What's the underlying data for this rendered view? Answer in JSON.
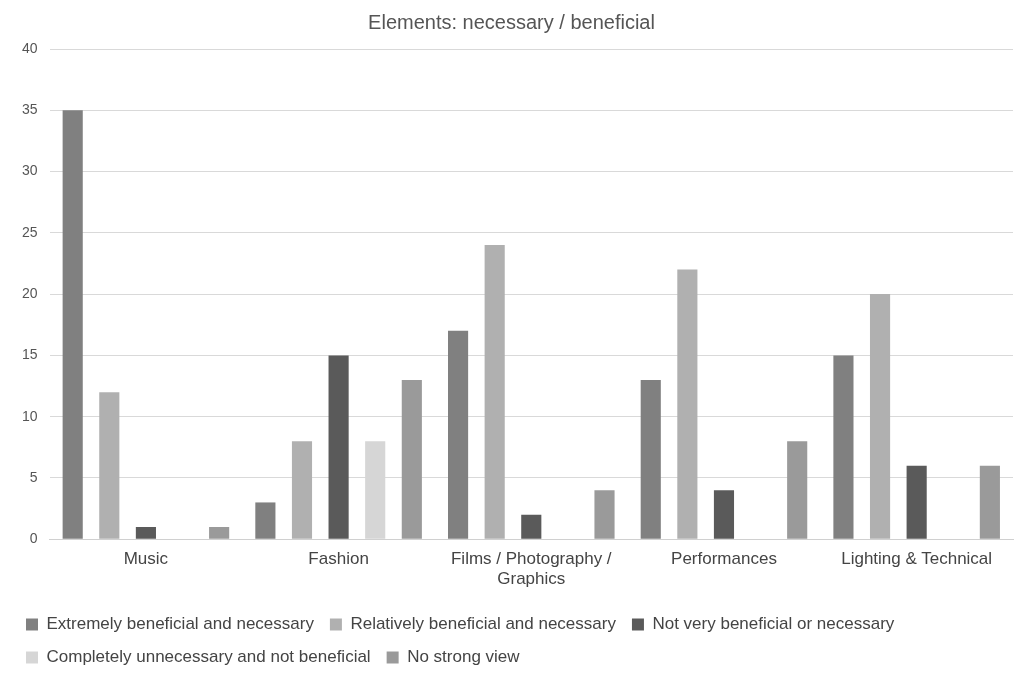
{
  "chart_data": {
    "type": "bar",
    "title": "Elements: necessary / beneficial",
    "categories": [
      "Music",
      "Fashion",
      "Films / Photography / Graphics",
      "Performances",
      "Lighting & Technical"
    ],
    "series": [
      {
        "name": "Extremely beneficial and necessary",
        "color": "#808080",
        "values": [
          35,
          3,
          17,
          13,
          15
        ]
      },
      {
        "name": "Relatively beneficial and necessary",
        "color": "#b0b0b0",
        "values": [
          12,
          8,
          24,
          22,
          20
        ]
      },
      {
        "name": "Not very beneficial or necessary",
        "color": "#5a5a5a",
        "values": [
          1,
          15,
          2,
          4,
          6
        ]
      },
      {
        "name": "Completely unnecessary and not beneficial",
        "color": "#d6d6d6",
        "values": [
          0,
          8,
          0,
          0,
          0
        ]
      },
      {
        "name": "No strong view",
        "color": "#9a9a9a",
        "values": [
          1,
          13,
          4,
          8,
          6
        ]
      }
    ],
    "ylim": [
      0,
      40
    ],
    "yticks": [
      0,
      5,
      10,
      15,
      20,
      25,
      30,
      35,
      40
    ],
    "grid": "y",
    "legend": "bottom"
  }
}
